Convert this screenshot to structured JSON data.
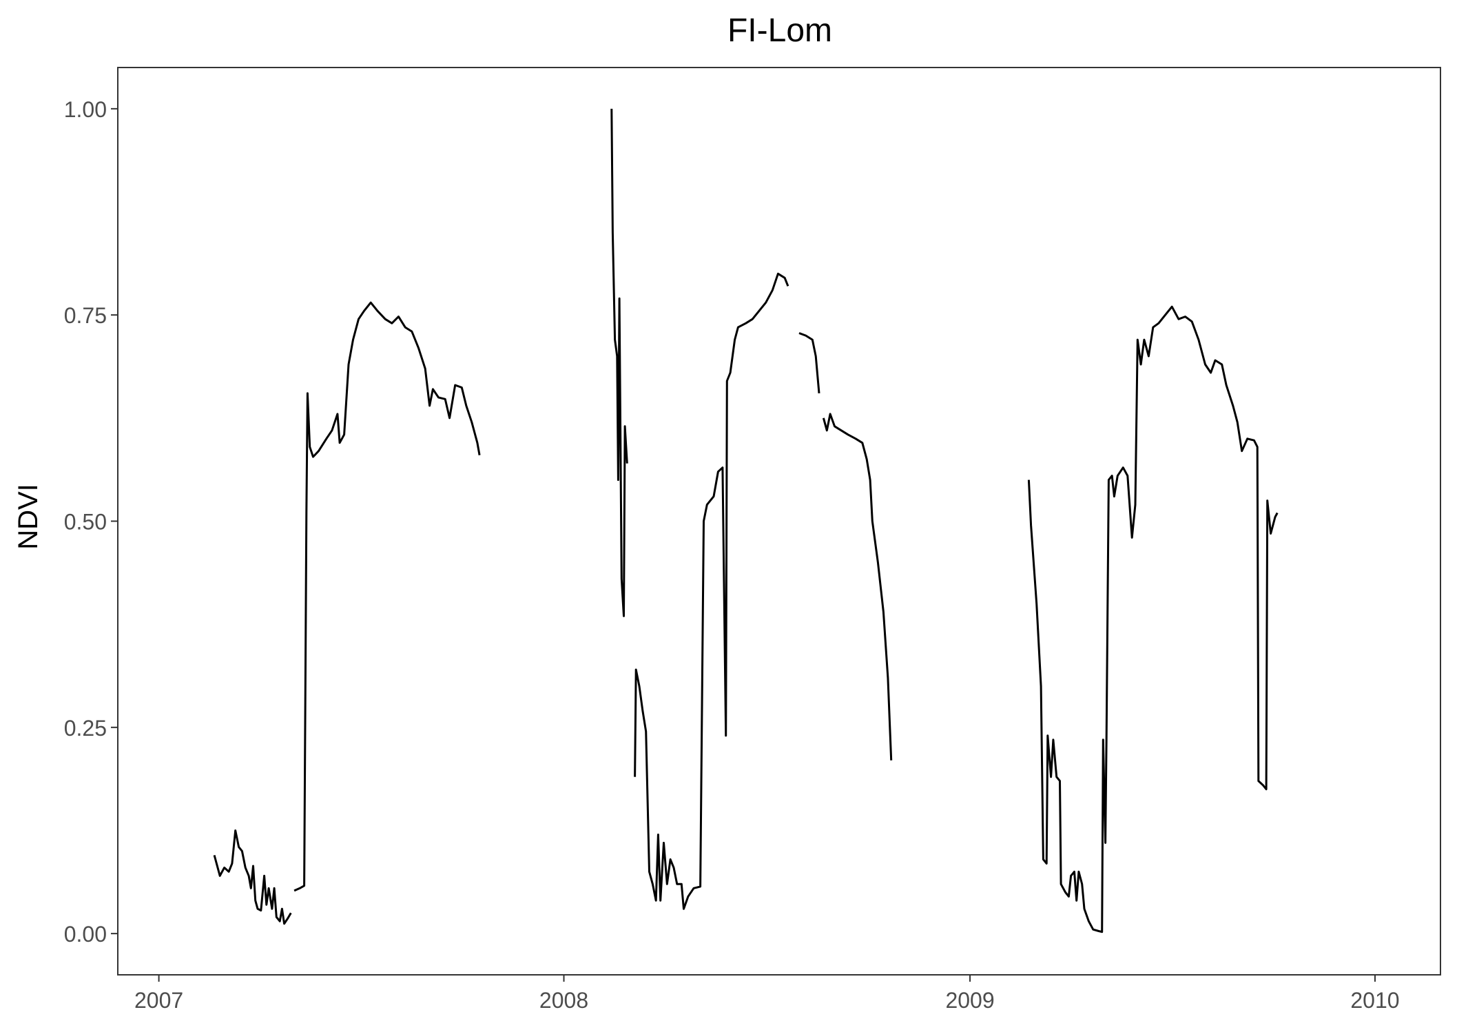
{
  "chart_data": {
    "type": "line",
    "title": "FI-Lom",
    "xlabel": "",
    "ylabel": "NDVI",
    "xlim": [
      "2006-11-25",
      "2010-03-01"
    ],
    "ylim": [
      -0.05,
      1.05
    ],
    "x_ticks": [
      "2007-01-01",
      "2008-01-01",
      "2009-01-01",
      "2010-01-01"
    ],
    "x_tick_labels": [
      "2007",
      "2008",
      "2009",
      "2010"
    ],
    "y_ticks": [
      0,
      0.25,
      0.5,
      0.75,
      1
    ],
    "y_tick_labels": [
      "0.00",
      "0.25",
      "0.50",
      "0.75",
      "1.00"
    ],
    "grid": false,
    "legend": "none",
    "line_color": "#000000",
    "segments": [
      [
        [
          "2007-02-20",
          0.095
        ],
        [
          "2007-02-25",
          0.07
        ],
        [
          "2007-03-01",
          0.08
        ],
        [
          "2007-03-05",
          0.075
        ],
        [
          "2007-03-08",
          0.085
        ],
        [
          "2007-03-11",
          0.125
        ],
        [
          "2007-03-14",
          0.105
        ],
        [
          "2007-03-17",
          0.1
        ],
        [
          "2007-03-20",
          0.08
        ],
        [
          "2007-03-23",
          0.07
        ],
        [
          "2007-03-25",
          0.055
        ],
        [
          "2007-03-27",
          0.082
        ],
        [
          "2007-03-29",
          0.04
        ],
        [
          "2007-03-31",
          0.03
        ],
        [
          "2007-04-03",
          0.028
        ],
        [
          "2007-04-06",
          0.07
        ],
        [
          "2007-04-08",
          0.035
        ],
        [
          "2007-04-10",
          0.055
        ],
        [
          "2007-04-13",
          0.03
        ],
        [
          "2007-04-15",
          0.055
        ],
        [
          "2007-04-17",
          0.02
        ],
        [
          "2007-04-20",
          0.015
        ],
        [
          "2007-04-22",
          0.03
        ],
        [
          "2007-04-24",
          0.012
        ],
        [
          "2007-04-27",
          0.018
        ],
        [
          "2007-04-30",
          0.025
        ]
      ],
      [
        [
          "2007-05-03",
          0.052
        ],
        [
          "2007-05-08",
          0.055
        ],
        [
          "2007-05-12",
          0.058
        ],
        [
          "2007-05-14",
          0.51
        ],
        [
          "2007-05-15",
          0.655
        ],
        [
          "2007-05-17",
          0.59
        ],
        [
          "2007-05-20",
          0.578
        ],
        [
          "2007-05-25",
          0.585
        ],
        [
          "2007-06-01",
          0.6
        ],
        [
          "2007-06-06",
          0.61
        ],
        [
          "2007-06-11",
          0.63
        ],
        [
          "2007-06-13",
          0.595
        ],
        [
          "2007-06-17",
          0.605
        ],
        [
          "2007-06-21",
          0.69
        ],
        [
          "2007-06-25",
          0.72
        ],
        [
          "2007-06-30",
          0.745
        ],
        [
          "2007-07-05",
          0.755
        ],
        [
          "2007-07-11",
          0.765
        ],
        [
          "2007-07-17",
          0.755
        ],
        [
          "2007-07-24",
          0.745
        ],
        [
          "2007-07-30",
          0.74
        ],
        [
          "2007-08-05",
          0.748
        ],
        [
          "2007-08-11",
          0.735
        ],
        [
          "2007-08-17",
          0.73
        ],
        [
          "2007-08-23",
          0.71
        ],
        [
          "2007-08-29",
          0.685
        ],
        [
          "2007-09-02",
          0.64
        ],
        [
          "2007-09-05",
          0.66
        ],
        [
          "2007-09-10",
          0.65
        ],
        [
          "2007-09-16",
          0.648
        ],
        [
          "2007-09-20",
          0.625
        ],
        [
          "2007-09-25",
          0.665
        ],
        [
          "2007-10-01",
          0.662
        ],
        [
          "2007-10-05",
          0.64
        ],
        [
          "2007-10-10",
          0.62
        ],
        [
          "2007-10-15",
          0.595
        ],
        [
          "2007-10-17",
          0.58
        ]
      ],
      [
        [
          "2008-02-13",
          1.0
        ],
        [
          "2008-02-14",
          0.85
        ],
        [
          "2008-02-16",
          0.72
        ],
        [
          "2008-02-18",
          0.7
        ],
        [
          "2008-02-19",
          0.55
        ],
        [
          "2008-02-20",
          0.77
        ],
        [
          "2008-02-22",
          0.43
        ],
        [
          "2008-02-24",
          0.385
        ],
        [
          "2008-02-25",
          0.615
        ],
        [
          "2008-02-27",
          0.57
        ]
      ],
      [
        [
          "2008-03-05",
          0.19
        ],
        [
          "2008-03-06",
          0.32
        ],
        [
          "2008-03-09",
          0.3
        ],
        [
          "2008-03-12",
          0.27
        ],
        [
          "2008-03-15",
          0.245
        ],
        [
          "2008-03-18",
          0.075
        ],
        [
          "2008-03-21",
          0.06
        ],
        [
          "2008-03-24",
          0.04
        ],
        [
          "2008-03-26",
          0.12
        ],
        [
          "2008-03-28",
          0.04
        ],
        [
          "2008-03-31",
          0.11
        ],
        [
          "2008-04-03",
          0.06
        ],
        [
          "2008-04-06",
          0.09
        ],
        [
          "2008-04-09",
          0.08
        ],
        [
          "2008-04-12",
          0.06
        ],
        [
          "2008-04-16",
          0.06
        ],
        [
          "2008-04-18",
          0.03
        ],
        [
          "2008-04-22",
          0.045
        ],
        [
          "2008-04-27",
          0.055
        ],
        [
          "2008-05-03",
          0.057
        ],
        [
          "2008-05-06",
          0.5
        ],
        [
          "2008-05-09",
          0.52
        ],
        [
          "2008-05-15",
          0.53
        ],
        [
          "2008-05-19",
          0.56
        ],
        [
          "2008-05-23",
          0.565
        ],
        [
          "2008-05-26",
          0.24
        ],
        [
          "2008-05-27",
          0.67
        ],
        [
          "2008-05-30",
          0.68
        ],
        [
          "2008-06-03",
          0.72
        ],
        [
          "2008-06-06",
          0.735
        ],
        [
          "2008-06-13",
          0.74
        ],
        [
          "2008-06-19",
          0.745
        ],
        [
          "2008-06-25",
          0.755
        ],
        [
          "2008-07-01",
          0.765
        ],
        [
          "2008-07-07",
          0.78
        ],
        [
          "2008-07-12",
          0.8
        ],
        [
          "2008-07-18",
          0.795
        ],
        [
          "2008-07-21",
          0.785
        ]
      ],
      [
        [
          "2008-07-31",
          0.728
        ],
        [
          "2008-08-06",
          0.725
        ],
        [
          "2008-08-12",
          0.72
        ],
        [
          "2008-08-15",
          0.7
        ],
        [
          "2008-08-18",
          0.655
        ]
      ],
      [
        [
          "2008-08-22",
          0.625
        ],
        [
          "2008-08-25",
          0.61
        ],
        [
          "2008-08-28",
          0.63
        ],
        [
          "2008-09-01",
          0.615
        ],
        [
          "2008-09-07",
          0.61
        ],
        [
          "2008-09-13",
          0.605
        ],
        [
          "2008-09-20",
          0.6
        ],
        [
          "2008-09-26",
          0.595
        ],
        [
          "2008-09-30",
          0.575
        ],
        [
          "2008-10-03",
          0.55
        ],
        [
          "2008-10-05",
          0.5
        ],
        [
          "2008-10-10",
          0.45
        ],
        [
          "2008-10-15",
          0.39
        ],
        [
          "2008-10-19",
          0.31
        ],
        [
          "2008-10-22",
          0.21
        ]
      ],
      [
        [
          "2009-02-23",
          0.55
        ],
        [
          "2009-02-25",
          0.495
        ],
        [
          "2009-03-02",
          0.4
        ],
        [
          "2009-03-06",
          0.3
        ],
        [
          "2009-03-08",
          0.09
        ],
        [
          "2009-03-11",
          0.085
        ],
        [
          "2009-03-12",
          0.24
        ],
        [
          "2009-03-15",
          0.19
        ],
        [
          "2009-03-17",
          0.235
        ],
        [
          "2009-03-20",
          0.19
        ],
        [
          "2009-03-23",
          0.185
        ],
        [
          "2009-03-24",
          0.06
        ],
        [
          "2009-03-28",
          0.05
        ],
        [
          "2009-03-31",
          0.045
        ],
        [
          "2009-04-02",
          0.07
        ],
        [
          "2009-04-05",
          0.075
        ],
        [
          "2009-04-07",
          0.04
        ],
        [
          "2009-04-09",
          0.075
        ],
        [
          "2009-04-12",
          0.06
        ],
        [
          "2009-04-14",
          0.03
        ],
        [
          "2009-04-18",
          0.015
        ],
        [
          "2009-04-22",
          0.005
        ],
        [
          "2009-04-27",
          0.003
        ],
        [
          "2009-04-30",
          0.002
        ],
        [
          "2009-05-01",
          0.235
        ],
        [
          "2009-05-03",
          0.11
        ],
        [
          "2009-05-04",
          0.24
        ],
        [
          "2009-05-06",
          0.55
        ],
        [
          "2009-05-09",
          0.555
        ],
        [
          "2009-05-11",
          0.53
        ],
        [
          "2009-05-14",
          0.555
        ],
        [
          "2009-05-19",
          0.565
        ],
        [
          "2009-05-23",
          0.555
        ],
        [
          "2009-05-27",
          0.48
        ],
        [
          "2009-05-30",
          0.52
        ],
        [
          "2009-06-01",
          0.72
        ],
        [
          "2009-06-04",
          0.69
        ],
        [
          "2009-06-07",
          0.72
        ],
        [
          "2009-06-11",
          0.7
        ],
        [
          "2009-06-15",
          0.735
        ],
        [
          "2009-06-20",
          0.74
        ],
        [
          "2009-06-26",
          0.75
        ],
        [
          "2009-07-02",
          0.76
        ],
        [
          "2009-07-08",
          0.745
        ],
        [
          "2009-07-14",
          0.748
        ],
        [
          "2009-07-20",
          0.742
        ],
        [
          "2009-07-26",
          0.72
        ],
        [
          "2009-08-01",
          0.69
        ],
        [
          "2009-08-06",
          0.68
        ],
        [
          "2009-08-10",
          0.695
        ],
        [
          "2009-08-16",
          0.69
        ],
        [
          "2009-08-20",
          0.665
        ],
        [
          "2009-08-26",
          0.64
        ],
        [
          "2009-08-30",
          0.62
        ],
        [
          "2009-09-03",
          0.585
        ],
        [
          "2009-09-08",
          0.6
        ],
        [
          "2009-09-14",
          0.598
        ],
        [
          "2009-09-17",
          0.59
        ],
        [
          "2009-09-18",
          0.185
        ],
        [
          "2009-09-22",
          0.18
        ],
        [
          "2009-09-25",
          0.175
        ],
        [
          "2009-09-26",
          0.525
        ],
        [
          "2009-09-29",
          0.485
        ],
        [
          "2009-10-03",
          0.505
        ],
        [
          "2009-10-05",
          0.51
        ]
      ]
    ]
  }
}
